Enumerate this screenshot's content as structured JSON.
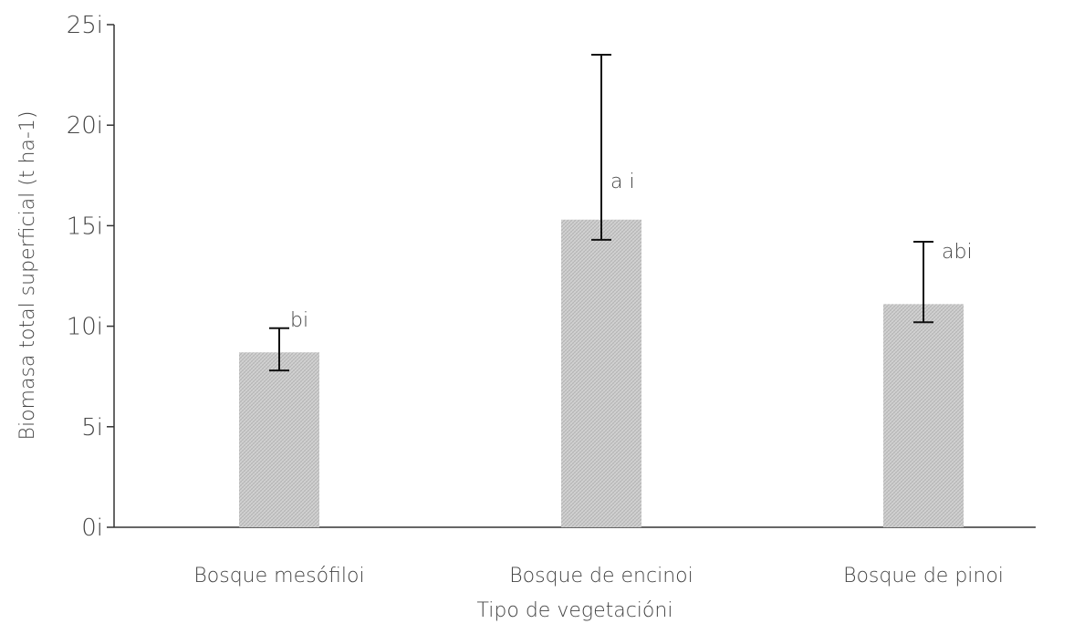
{
  "chart_data": {
    "type": "bar",
    "title": "",
    "xlabel": "Tipo de vegetacióni",
    "ylabel": "Biomasa total superficial (t ha-1)",
    "ylim": [
      0,
      25
    ],
    "yticks": [
      "0i",
      "5i",
      "10i",
      "15i",
      "20i",
      "25i"
    ],
    "ytick_values": [
      0,
      5,
      10,
      15,
      20,
      25
    ],
    "categories": [
      "Bosque mesófiloi",
      "Bosque de encinoi",
      "Bosque de pinoi"
    ],
    "values": [
      8.7,
      15.3,
      11.1
    ],
    "error_low": [
      7.8,
      14.3,
      10.2
    ],
    "error_high": [
      9.9,
      23.5,
      14.2
    ],
    "significance_labels": [
      "bi",
      "a   i",
      "abi"
    ],
    "grid": false,
    "legend": "none",
    "colors": {
      "bar": "#c8c8c8",
      "bar_pattern": "#b0b0b0",
      "axis": "#333333",
      "error": "#111111",
      "text": "#444444"
    }
  }
}
